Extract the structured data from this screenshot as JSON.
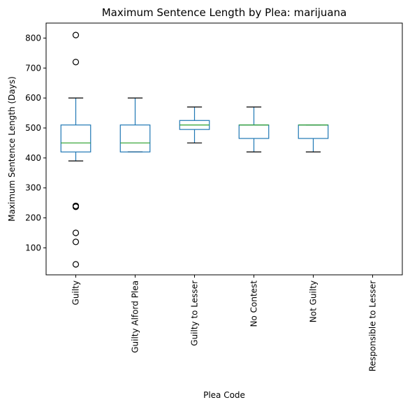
{
  "chart_data": {
    "type": "box",
    "title": "Maximum Sentence Length by Plea: marijuana",
    "xlabel": "Plea Code",
    "ylabel": "Maximum Sentence Length (Days)",
    "ylim": [
      10,
      850
    ],
    "yticks": [
      100,
      200,
      300,
      400,
      500,
      600,
      700,
      800
    ],
    "grid": false,
    "categories": [
      "Guilty",
      "Guilty Alford Plea",
      "Guilty to Lesser",
      "No Contest",
      "Not Guilty",
      "Responsible to Lesser"
    ],
    "boxes": [
      {
        "category": "Guilty",
        "whisker_low": 390,
        "q1": 420,
        "median": 450,
        "q3": 510,
        "whisker_high": 600,
        "fliers": [
          810,
          720,
          240,
          240,
          237,
          150,
          120,
          45
        ]
      },
      {
        "category": "Guilty Alford Plea",
        "whisker_low": 420,
        "q1": 420,
        "median": 450,
        "q3": 510,
        "whisker_high": 600,
        "fliers": []
      },
      {
        "category": "Guilty to Lesser",
        "whisker_low": 450,
        "q1": 495,
        "median": 510,
        "q3": 525,
        "whisker_high": 570,
        "fliers": []
      },
      {
        "category": "No Contest",
        "whisker_low": 420,
        "q1": 465,
        "median": 510,
        "q3": 510,
        "whisker_high": 570,
        "fliers": []
      },
      {
        "category": "Not Guilty",
        "whisker_low": 420,
        "q1": 465,
        "median": 510,
        "q3": 510,
        "whisker_high": 510,
        "fliers": []
      },
      {
        "category": "Responsible to Lesser",
        "whisker_low": null,
        "q1": null,
        "median": null,
        "q3": null,
        "whisker_high": null,
        "fliers": []
      }
    ],
    "colors": {
      "box": "#1f77b4",
      "median": "#2ca02c",
      "whisker_cap": "#000000",
      "flier": "#000000"
    }
  }
}
